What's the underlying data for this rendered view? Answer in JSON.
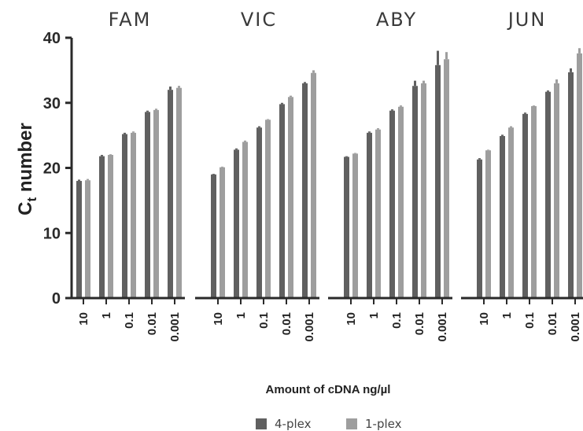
{
  "chart_data": {
    "type": "bar",
    "ylabel_main": "C",
    "ylabel_sub": "t",
    "ylabel_rest": " number",
    "xlabel": "Amount of cDNA ng/µl",
    "ylim": [
      0,
      40
    ],
    "yticks": [
      "0",
      "10",
      "20",
      "30",
      "40"
    ],
    "categories": [
      "10",
      "1",
      "0.1",
      "0.01",
      "0.001"
    ],
    "legend": {
      "position": "bottom-center",
      "items": [
        {
          "label": "4-plex",
          "color": "#606060"
        },
        {
          "label": "1-plex",
          "color": "#9e9e9e"
        }
      ]
    },
    "panels": [
      {
        "title": "FAM",
        "series": [
          {
            "name": "4-plex",
            "values": [
              18.0,
              21.8,
              25.2,
              28.6,
              32.0
            ],
            "errors": [
              0.2,
              0.2,
              0.2,
              0.2,
              0.5
            ]
          },
          {
            "name": "1-plex",
            "values": [
              18.1,
              22.0,
              25.4,
              28.9,
              32.3
            ],
            "errors": [
              0.2,
              0.1,
              0.2,
              0.2,
              0.3
            ]
          }
        ]
      },
      {
        "title": "VIC",
        "series": [
          {
            "name": "4-plex",
            "values": [
              19.0,
              22.8,
              26.2,
              29.8,
              33.0
            ],
            "errors": [
              0.1,
              0.2,
              0.2,
              0.2,
              0.2
            ]
          },
          {
            "name": "1-plex",
            "values": [
              20.1,
              24.0,
              27.4,
              30.9,
              34.6
            ],
            "errors": [
              0.1,
              0.2,
              0.1,
              0.2,
              0.4
            ]
          }
        ]
      },
      {
        "title": "ABY",
        "series": [
          {
            "name": "4-plex",
            "values": [
              21.7,
              25.4,
              28.8,
              32.6,
              35.8
            ],
            "errors": [
              0.1,
              0.2,
              0.2,
              0.8,
              2.2
            ]
          },
          {
            "name": "1-plex",
            "values": [
              22.2,
              25.9,
              29.4,
              33.0,
              36.7
            ],
            "errors": [
              0.1,
              0.2,
              0.2,
              0.4,
              1.1
            ]
          }
        ]
      },
      {
        "title": "JUN",
        "series": [
          {
            "name": "4-plex",
            "values": [
              21.3,
              24.9,
              28.3,
              31.7,
              34.7
            ],
            "errors": [
              0.2,
              0.2,
              0.2,
              0.2,
              0.6
            ]
          },
          {
            "name": "1-plex",
            "values": [
              22.7,
              26.2,
              29.5,
              33.0,
              37.6
            ],
            "errors": [
              0.1,
              0.2,
              0.1,
              0.6,
              0.8
            ]
          }
        ]
      }
    ]
  }
}
